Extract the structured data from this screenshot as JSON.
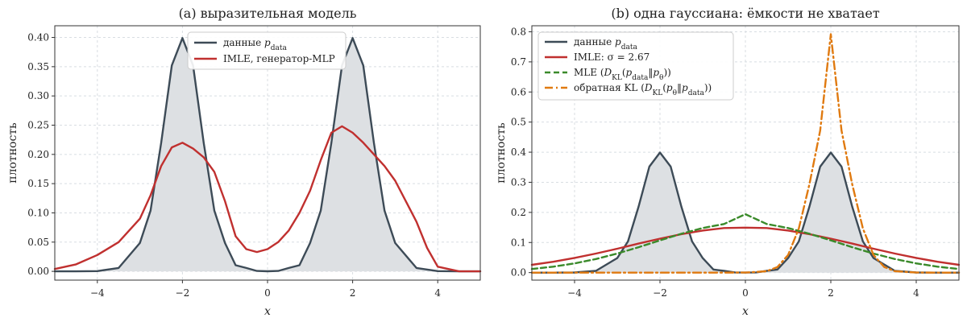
{
  "colors": {
    "data": "#3d4b57",
    "data_fill": "#dde0e3",
    "imle": "#c0302f",
    "mle": "#3a8a2a",
    "rkl": "#e07a10",
    "grid": "#d8dde2"
  },
  "chart_data": [
    {
      "type": "line",
      "title": "(a) выразительная модель",
      "xlabel": "x",
      "ylabel": "плотность",
      "xlim": [
        -5,
        5
      ],
      "ylim": [
        -0.015,
        0.42
      ],
      "xticks": [
        -4,
        -2,
        0,
        2,
        4
      ],
      "xtick_labels": [
        "−4",
        "−2",
        "0",
        "2",
        "4"
      ],
      "yticks": [
        0.0,
        0.05,
        0.1,
        0.15,
        0.2,
        0.25,
        0.3,
        0.35,
        0.4
      ],
      "ytick_labels": [
        "0.00",
        "0.05",
        "0.10",
        "0.15",
        "0.20",
        "0.25",
        "0.30",
        "0.35",
        "0.40"
      ],
      "grid": true,
      "legend_position": "top-center",
      "series": [
        {
          "name": "данные p_data",
          "style": "solid-filled",
          "color_key": "data",
          "x": [
            -5,
            -4.5,
            -4,
            -3.5,
            -3,
            -2.75,
            -2.5,
            -2.25,
            -2,
            -1.75,
            -1.5,
            -1.25,
            -1,
            -0.75,
            -0.5,
            -0.25,
            0,
            0.25,
            0.5,
            0.75,
            1,
            1.25,
            1.5,
            1.75,
            2,
            2.25,
            2.5,
            2.75,
            3,
            3.5,
            4,
            4.5,
            5
          ],
          "y": [
            0.0,
            0.0,
            0.0004,
            0.0058,
            0.0484,
            0.1036,
            0.2197,
            0.3521,
            0.3989,
            0.3521,
            0.2197,
            0.1036,
            0.0484,
            0.0104,
            0.0058,
            0.0007,
            0.0001,
            0.0007,
            0.0058,
            0.0104,
            0.0484,
            0.1036,
            0.2197,
            0.3521,
            0.3989,
            0.3521,
            0.2197,
            0.1036,
            0.0484,
            0.0058,
            0.0004,
            0.0,
            0.0
          ]
        },
        {
          "name": "IMLE, генератор-MLP",
          "style": "solid",
          "color_key": "imle",
          "x": [
            -5,
            -4.5,
            -4,
            -3.5,
            -3,
            -2.75,
            -2.5,
            -2.25,
            -2,
            -1.75,
            -1.5,
            -1.25,
            -1,
            -0.75,
            -0.5,
            -0.25,
            0,
            0.25,
            0.5,
            0.75,
            1,
            1.25,
            1.5,
            1.75,
            2,
            2.25,
            2.5,
            2.75,
            3,
            3.25,
            3.5,
            3.75,
            4,
            4.5,
            5
          ],
          "y": [
            0.004,
            0.012,
            0.028,
            0.05,
            0.09,
            0.13,
            0.18,
            0.212,
            0.22,
            0.21,
            0.195,
            0.17,
            0.12,
            0.06,
            0.038,
            0.033,
            0.038,
            0.05,
            0.07,
            0.1,
            0.138,
            0.19,
            0.237,
            0.248,
            0.237,
            0.22,
            0.2,
            0.18,
            0.155,
            0.12,
            0.085,
            0.04,
            0.008,
            0.0,
            0.0
          ]
        }
      ]
    },
    {
      "type": "line",
      "title": "(b) одна гауссиана: ёмкости не хватает",
      "xlabel": "x",
      "ylabel": "плотность",
      "xlim": [
        -5,
        5
      ],
      "ylim": [
        -0.025,
        0.82
      ],
      "xticks": [
        -4,
        -2,
        0,
        2,
        4
      ],
      "xtick_labels": [
        "−4",
        "−2",
        "0",
        "2",
        "4"
      ],
      "yticks": [
        0.0,
        0.1,
        0.2,
        0.3,
        0.4,
        0.5,
        0.6,
        0.7,
        0.8
      ],
      "ytick_labels": [
        "0.0",
        "0.1",
        "0.2",
        "0.3",
        "0.4",
        "0.5",
        "0.6",
        "0.7",
        "0.8"
      ],
      "grid": true,
      "legend_position": "top-left",
      "series": [
        {
          "name": "данные p_data",
          "style": "solid-filled",
          "color_key": "data",
          "x": [
            -5,
            -4.5,
            -4,
            -3.5,
            -3,
            -2.75,
            -2.5,
            -2.25,
            -2,
            -1.75,
            -1.5,
            -1.25,
            -1,
            -0.75,
            -0.5,
            -0.25,
            0,
            0.25,
            0.5,
            0.75,
            1,
            1.25,
            1.5,
            1.75,
            2,
            2.25,
            2.5,
            2.75,
            3,
            3.5,
            4,
            4.5,
            5
          ],
          "y": [
            0.0,
            0.0,
            0.0004,
            0.0058,
            0.0484,
            0.1036,
            0.2197,
            0.3521,
            0.3989,
            0.3521,
            0.2197,
            0.1036,
            0.0484,
            0.0104,
            0.0058,
            0.0007,
            0.0001,
            0.0007,
            0.0058,
            0.0104,
            0.0484,
            0.1036,
            0.2197,
            0.3521,
            0.3989,
            0.3521,
            0.2197,
            0.1036,
            0.0484,
            0.0058,
            0.0004,
            0.0,
            0.0
          ]
        },
        {
          "name": "IMLE: σ = 2.67",
          "style": "solid",
          "color_key": "imle",
          "x": [
            -5,
            -4.5,
            -4,
            -3.5,
            -3,
            -2.5,
            -2,
            -1.5,
            -1,
            -0.5,
            0,
            0.5,
            1,
            1.5,
            2,
            2.5,
            3,
            3.5,
            4,
            4.5,
            5
          ],
          "y": [
            0.0258,
            0.036,
            0.0487,
            0.0632,
            0.0794,
            0.0963,
            0.1128,
            0.1277,
            0.1398,
            0.1479,
            0.1494,
            0.1479,
            0.1398,
            0.1277,
            0.1128,
            0.0963,
            0.0794,
            0.0632,
            0.0487,
            0.036,
            0.0258
          ]
        },
        {
          "name": "MLE (D_KL(p_data‖p_θ))",
          "style": "dashed",
          "color_key": "mle",
          "x": [
            -5,
            -4.5,
            -4,
            -3.5,
            -3,
            -2.5,
            -2,
            -1.5,
            -1,
            -0.5,
            0,
            0.5,
            1,
            1.5,
            2,
            2.5,
            3,
            3.5,
            4,
            4.5,
            5
          ],
          "y": [
            0.012,
            0.0196,
            0.0305,
            0.0451,
            0.0633,
            0.0845,
            0.1071,
            0.1291,
            0.1479,
            0.1613,
            0.194,
            0.1613,
            0.1479,
            0.1291,
            0.1071,
            0.0845,
            0.0633,
            0.0451,
            0.0305,
            0.0196,
            0.012
          ]
        },
        {
          "name": "обратная KL (D_KL(p_θ‖p_data))",
          "style": "dashdot",
          "color_key": "rkl",
          "x": [
            -5,
            -1,
            0,
            0.5,
            0.75,
            1,
            1.25,
            1.5,
            1.75,
            2,
            2.25,
            2.5,
            2.75,
            3,
            3.25,
            3.5,
            4,
            5
          ],
          "y": [
            0.0,
            0.0,
            0.0001,
            0.0047,
            0.0185,
            0.0583,
            0.1466,
            0.294,
            0.4718,
            0.792,
            0.4718,
            0.294,
            0.1466,
            0.0583,
            0.0185,
            0.0047,
            0.0001,
            0.0
          ]
        }
      ]
    }
  ]
}
